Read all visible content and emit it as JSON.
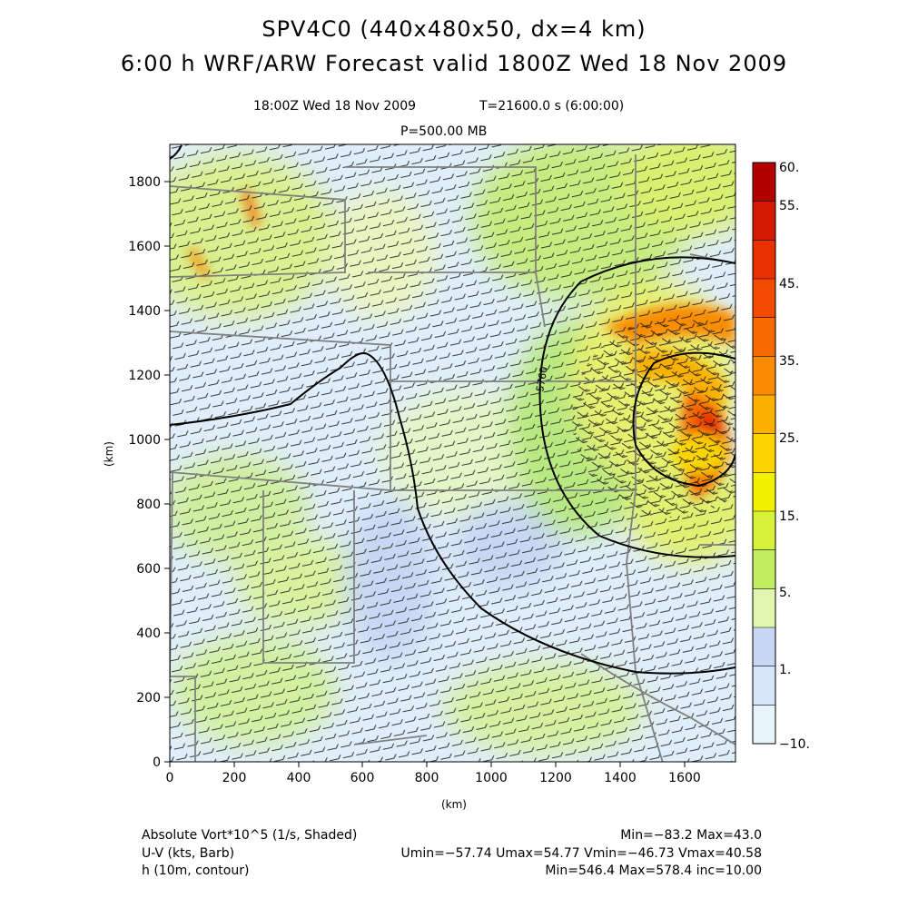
{
  "title_line1": "SPV4C0 (440x480x50, dx=4 km)",
  "title_line2": "6:00 h  WRF/ARW Forecast valid 1800Z Wed 18 Nov 2009",
  "time_label": "18:00Z Wed 18 Nov 2009",
  "t_label": "T=21600.0 s (6:00:00)",
  "level_label": "P=500.00 MB",
  "xaxis_label": "(km)",
  "yaxis_label": "(km)",
  "x_ticks": [
    "0",
    "200",
    "400",
    "600",
    "800",
    "1000",
    "1200",
    "1400",
    "1600"
  ],
  "y_ticks": [
    "0",
    "200",
    "400",
    "600",
    "800",
    "1000",
    "1200",
    "1400",
    "1600",
    "1800"
  ],
  "contour_label": "5760",
  "colorbar": {
    "labels": [
      "60.",
      "55.",
      "45.",
      "35.",
      "25.",
      "15.",
      "5.",
      "1.",
      "−10."
    ],
    "colors": [
      "#b30000",
      "#d21a00",
      "#e83000",
      "#f24a00",
      "#f66a00",
      "#f98c00",
      "#fbb000",
      "#fcd400",
      "#f2f200",
      "#d8f23a",
      "#c0ee60",
      "#e0f7b0",
      "#c8d8f4",
      "#d8e6fa",
      "#e8f4fc"
    ]
  },
  "legend": {
    "field1": "Absolute Vort*10^5 (1/s, Shaded)",
    "field1_stats": "Min=−83.2 Max=43.0",
    "field2": "U-V (kts, Barb)",
    "field2_stats": "Umin=−57.74 Umax=54.77 Vmin=−46.73 Vmax=40.58",
    "field3": "h (10m, contour)",
    "field3_stats": "Min=546.4 Max=578.4 inc=10.00"
  }
}
